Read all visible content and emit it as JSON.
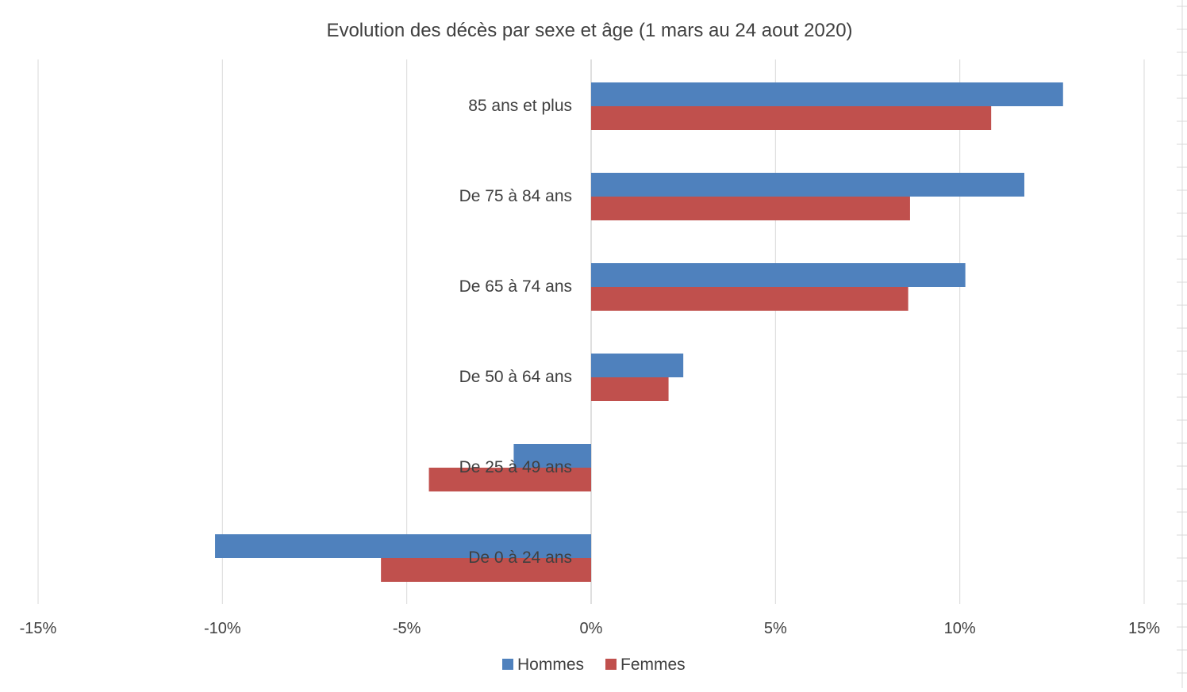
{
  "chart_data": {
    "type": "bar",
    "orientation": "horizontal",
    "title": "Evolution des décès par sexe et âge (1 mars au 24 aout 2020)",
    "xlabel": "",
    "ylabel": "",
    "categories": [
      "85 ans et plus",
      "De 75 à 84 ans",
      "De 65 à 74 ans",
      "De 50 à 64 ans",
      "De 25 à 49 ans",
      "De 0 à 24 ans"
    ],
    "series": [
      {
        "name": "Hommes",
        "color": "#4f81bd",
        "values": [
          12.8,
          11.75,
          10.15,
          2.5,
          -2.1,
          -10.2
        ]
      },
      {
        "name": "Femmes",
        "color": "#c0504d",
        "values": [
          10.85,
          8.65,
          8.6,
          2.1,
          -4.4,
          -5.7
        ]
      }
    ],
    "xlim": [
      -15,
      15
    ],
    "xticks": [
      -15,
      -10,
      -5,
      0,
      5,
      10,
      15
    ],
    "xtick_labels": [
      "-15%",
      "-10%",
      "-5%",
      "0%",
      "5%",
      "10%",
      "15%"
    ],
    "grid": true,
    "legend_position": "bottom",
    "gridline_color": "#d9d9d9",
    "text_color": "#404040"
  }
}
